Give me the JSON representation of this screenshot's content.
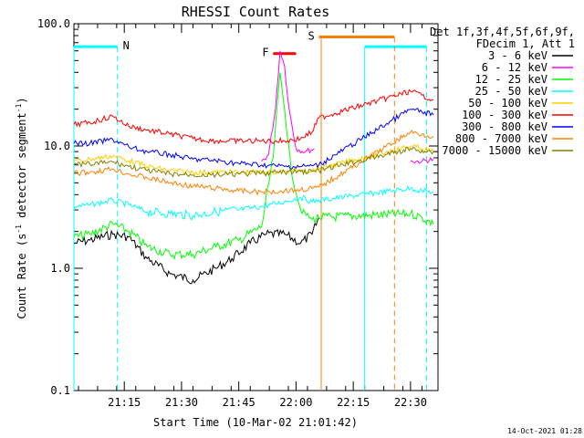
{
  "chart_data": {
    "type": "line",
    "title": "RHESSI Count Rates",
    "xlabel": "Start Time (10-Mar-02 21:01:42)",
    "ylabel": "Count Rate (s",
    "ylabel_sup": "-1",
    "ylabel_mid": " detector segment",
    "ylabel_sup2": "-1",
    "ylabel_end": ")",
    "y_scale": "log",
    "ylim": [
      0.1,
      100.0
    ],
    "xlim_minutes": [
      21.03,
      22.62
    ],
    "x_ticks": [
      {
        "value": 21.25,
        "label": "21:15"
      },
      {
        "value": 21.5,
        "label": "21:30"
      },
      {
        "value": 21.75,
        "label": "21:45"
      },
      {
        "value": 22.0,
        "label": "22:00"
      },
      {
        "value": 22.25,
        "label": "22:15"
      },
      {
        "value": 22.5,
        "label": "22:30"
      }
    ],
    "y_ticks": [
      {
        "value": 0.1,
        "label": "0.1"
      },
      {
        "value": 1.0,
        "label": "1.0"
      },
      {
        "value": 10.0,
        "label": "10.0"
      },
      {
        "value": 100.0,
        "label": "100.0"
      }
    ],
    "legend_header_1": "Det 1f,3f,4f,5f,6f,9f,",
    "legend_header_2": "FDecim 1, Att 1",
    "legend_position": "right",
    "series": [
      {
        "name": "3 - 6 keV",
        "color": "#000000",
        "x": [
          21.03,
          21.1,
          21.2,
          21.27,
          21.35,
          21.45,
          21.55,
          21.65,
          21.72,
          21.8,
          21.87,
          21.95,
          22.02,
          22.07,
          22.1,
          22.15
        ],
        "y": [
          1.6,
          1.7,
          1.9,
          1.8,
          1.2,
          0.9,
          0.8,
          1.0,
          1.2,
          1.6,
          1.9,
          1.9,
          1.6,
          1.9,
          2.6,
          null
        ]
      },
      {
        "name": "6 - 12 keV",
        "color": "#ff00ff",
        "x": [
          21.85,
          21.88,
          21.91,
          21.93,
          21.95,
          21.97,
          22.0,
          22.04,
          22.08,
          22.1,
          22.5,
          22.55,
          22.6
        ],
        "y": [
          7.5,
          8.5,
          20.0,
          60.0,
          45.0,
          20.0,
          9.5,
          9.0,
          9.5,
          null,
          7.5,
          7.5,
          7.8
        ]
      },
      {
        "name": "12 - 25 keV",
        "color": "#00ff00",
        "x": [
          21.03,
          21.1,
          21.2,
          21.27,
          21.35,
          21.45,
          21.55,
          21.65,
          21.75,
          21.85,
          21.9,
          21.93,
          21.95,
          21.98,
          22.02,
          22.07,
          22.1,
          22.5,
          22.55,
          22.6
        ],
        "y": [
          1.8,
          1.9,
          2.3,
          2.0,
          1.5,
          1.3,
          1.3,
          1.5,
          1.7,
          2.2,
          8.0,
          40.0,
          20.0,
          6.0,
          3.0,
          2.5,
          2.6,
          2.8,
          2.6,
          2.3
        ]
      },
      {
        "name": "25 - 50 keV",
        "color": "#00ffff",
        "x": [
          21.03,
          21.1,
          21.2,
          21.27,
          21.35,
          21.45,
          21.55,
          21.65,
          21.75,
          21.85,
          21.95,
          22.02,
          22.07,
          22.1,
          22.5,
          22.55,
          22.6
        ],
        "y": [
          3.2,
          3.3,
          3.6,
          3.3,
          2.9,
          2.8,
          2.7,
          2.9,
          3.0,
          3.2,
          3.5,
          3.8,
          3.5,
          3.6,
          4.5,
          4.3,
          4.2
        ]
      },
      {
        "name": "50 - 100 keV",
        "color": "#ffcc00",
        "x": [
          21.03,
          21.1,
          21.2,
          21.27,
          21.35,
          21.45,
          21.55,
          21.65,
          21.75,
          21.85,
          21.95,
          22.02,
          22.07,
          22.1,
          22.5,
          22.55,
          22.6
        ],
        "y": [
          7.5,
          7.8,
          8.3,
          7.6,
          6.8,
          6.3,
          6.1,
          6.1,
          6.1,
          6.1,
          6.2,
          6.4,
          6.3,
          6.5,
          10.0,
          9.5,
          9.0
        ]
      },
      {
        "name": "100 - 300 keV",
        "color": "#ff0000",
        "x": [
          21.03,
          21.1,
          21.2,
          21.27,
          21.35,
          21.45,
          21.55,
          21.65,
          21.75,
          21.85,
          21.95,
          22.02,
          22.07,
          22.1,
          22.5,
          22.55,
          22.6
        ],
        "y": [
          15.0,
          15.5,
          17.5,
          14.5,
          13.5,
          12.5,
          11.5,
          11.0,
          11.0,
          11.0,
          11.0,
          11.5,
          13.0,
          17.0,
          28.0,
          26.0,
          24.0
        ]
      },
      {
        "name": "300 - 800 keV",
        "color": "#0000ff",
        "x": [
          21.03,
          21.1,
          21.2,
          21.27,
          21.35,
          21.45,
          21.55,
          21.65,
          21.75,
          21.85,
          21.95,
          22.02,
          22.07,
          22.1,
          22.5,
          22.55,
          22.6
        ],
        "y": [
          10.5,
          10.5,
          11.3,
          9.8,
          9.0,
          8.5,
          7.8,
          7.6,
          7.2,
          7.0,
          6.8,
          6.8,
          6.9,
          7.0,
          20.0,
          19.0,
          18.0
        ]
      },
      {
        "name": "800 - 7000 keV",
        "color": "#ff8000",
        "x": [
          21.03,
          21.1,
          21.2,
          21.27,
          21.35,
          21.45,
          21.55,
          21.65,
          21.75,
          21.85,
          21.95,
          22.02,
          22.07,
          22.1,
          22.5,
          22.55,
          22.6
        ],
        "y": [
          6.0,
          6.1,
          6.5,
          5.9,
          5.5,
          5.0,
          4.7,
          4.5,
          4.3,
          4.2,
          4.3,
          4.4,
          4.5,
          4.6,
          13.0,
          12.5,
          12.0
        ]
      },
      {
        "name": "7000 - 15000 keV",
        "color": "#808000",
        "x": [
          21.03,
          21.1,
          21.2,
          21.27,
          21.35,
          21.45,
          21.55,
          21.65,
          21.75,
          21.85,
          21.95,
          22.02,
          22.07,
          22.1,
          22.5,
          22.55,
          22.6
        ],
        "y": [
          7.0,
          7.1,
          7.4,
          6.8,
          6.3,
          5.9,
          5.8,
          5.8,
          5.9,
          6.0,
          6.1,
          6.2,
          6.2,
          6.3,
          9.5,
          9.2,
          9.0
        ]
      }
    ],
    "annotations": [
      {
        "label": "N",
        "color": "#00ffff",
        "segments": [
          [
            21.03,
            21.22
          ],
          [
            22.3,
            22.57
          ]
        ],
        "level": 65.0,
        "vlines": [
          21.03,
          21.22,
          22.3,
          22.57
        ]
      },
      {
        "label": "F",
        "color": "#ff0000",
        "segments": [
          [
            21.9,
            22.0
          ]
        ],
        "level": 57.0,
        "vlines": []
      },
      {
        "label": "S",
        "color": "#ff8000",
        "segments": [
          [
            22.1,
            22.43
          ]
        ],
        "level": 78.0,
        "vlines": [
          22.11,
          22.43
        ]
      }
    ]
  },
  "timestamp": "14-Oct-2021 01:28"
}
